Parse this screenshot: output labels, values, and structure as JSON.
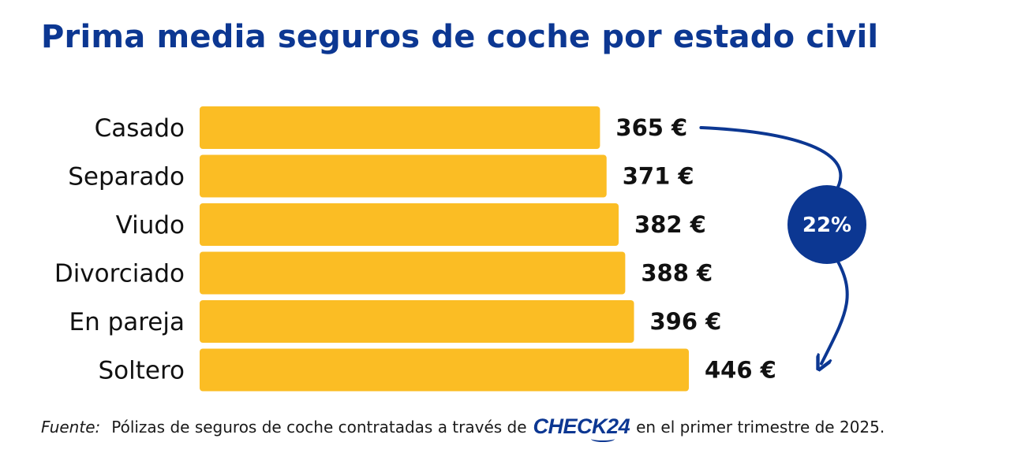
{
  "title": "Prima media seguros de coche por estado civil",
  "chart_data": {
    "type": "bar",
    "orientation": "horizontal",
    "categories": [
      "Casado",
      "Separado",
      "Viudo",
      "Divorciado",
      "En pareja",
      "Soltero"
    ],
    "values": [
      365,
      371,
      382,
      388,
      396,
      446
    ],
    "value_labels": [
      "365 €",
      "371 €",
      "382 €",
      "388 €",
      "396 €",
      "446 €"
    ],
    "unit": "€",
    "annotation": "22%",
    "bar_color": "#fbbd24",
    "accent_color": "#0c3792",
    "grid": false,
    "legend": "none"
  },
  "footer": {
    "source_label": "Fuente:",
    "text_before": "Pólizas de seguros de coche contratadas a través de",
    "logo_text": "CHECK24",
    "text_after": "en el primer trimestre de 2025."
  }
}
